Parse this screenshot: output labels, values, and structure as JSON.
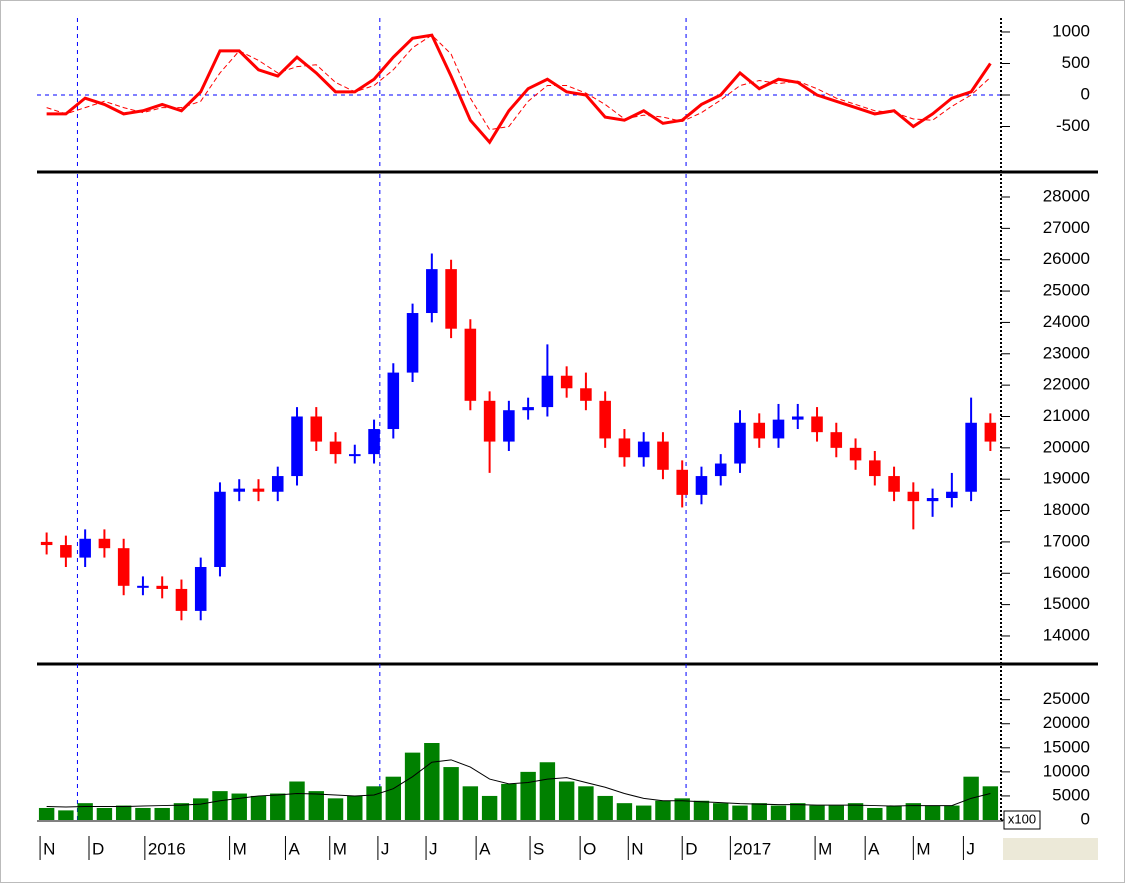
{
  "chart_data": [
    {
      "type": "line",
      "xlim": [
        0,
        50
      ],
      "ylim": [
        -1190,
        1190
      ],
      "yticks": [
        -500,
        0,
        500,
        1000
      ],
      "vlines": [
        2.1,
        17.8,
        33.7
      ],
      "series": [
        {
          "name": "oscillator",
          "color": "#ff0000",
          "values": [
            -300,
            -300,
            -50,
            -150,
            -300,
            -250,
            -150,
            -250,
            50,
            700,
            700,
            400,
            300,
            600,
            350,
            50,
            50,
            250,
            600,
            900,
            950,
            300,
            -400,
            -750,
            -250,
            100,
            250,
            50,
            0,
            -350,
            -400,
            -250,
            -450,
            -400,
            -150,
            0,
            350,
            100,
            250,
            200,
            0,
            -100,
            -200,
            -300,
            -250,
            -500,
            -300,
            -50,
            50,
            500
          ]
        },
        {
          "name": "signal",
          "color": "#ff0000",
          "values": [
            -200,
            -300,
            -200,
            -100,
            -200,
            -280,
            -200,
            -200,
            -100,
            350,
            700,
            550,
            350,
            450,
            480,
            200,
            50,
            150,
            400,
            750,
            950,
            650,
            -50,
            -550,
            -500,
            -100,
            150,
            150,
            30,
            -150,
            -380,
            -320,
            -350,
            -420,
            -280,
            -80,
            150,
            230,
            180,
            220,
            100,
            -50,
            -150,
            -250,
            -280,
            -380,
            -400,
            -180,
            0,
            280
          ]
        }
      ]
    },
    {
      "type": "candlestick",
      "xlim": [
        0,
        50
      ],
      "ylim": [
        13170,
        28670
      ],
      "yticks": [
        14000,
        15000,
        16000,
        17000,
        18000,
        19000,
        20000,
        21000,
        22000,
        23000,
        24000,
        25000,
        26000,
        27000,
        28000
      ],
      "vlines": [
        2.1,
        17.8,
        33.7
      ],
      "up_color": "#0000ff",
      "down_color": "#ff0000",
      "open": [
        17000,
        16900,
        16500,
        17100,
        16800,
        15600,
        15600,
        15500,
        14800,
        16200,
        18600,
        18700,
        18600,
        19100,
        21000,
        20200,
        19800,
        19800,
        20600,
        22400,
        24300,
        25700,
        23800,
        21500,
        20200,
        21200,
        21300,
        22300,
        21900,
        21500,
        20300,
        19700,
        20200,
        19300,
        18500,
        19100,
        19500,
        20800,
        20300,
        20900,
        21000,
        20500,
        20000,
        19600,
        19100,
        18600,
        18300,
        18400,
        18600,
        20800
      ],
      "high": [
        17300,
        17200,
        17400,
        17400,
        17100,
        15900,
        15900,
        15800,
        16500,
        18900,
        19000,
        19000,
        19400,
        21300,
        21300,
        20500,
        20100,
        20900,
        22700,
        24600,
        26200,
        26000,
        24100,
        21800,
        21500,
        21600,
        23300,
        22600,
        22400,
        21800,
        20600,
        20500,
        20500,
        19600,
        19400,
        19800,
        21200,
        21100,
        21400,
        21400,
        21300,
        20800,
        20300,
        19900,
        19400,
        18900,
        18700,
        19200,
        21600,
        21100
      ],
      "low": [
        16600,
        16200,
        16200,
        16500,
        15300,
        15300,
        15200,
        14500,
        14500,
        15900,
        18300,
        18300,
        18300,
        18800,
        19900,
        19500,
        19500,
        19500,
        20300,
        22100,
        24000,
        23500,
        21200,
        19200,
        19900,
        20900,
        21000,
        21600,
        21200,
        20000,
        19400,
        19400,
        19000,
        18100,
        18200,
        18800,
        19200,
        20000,
        20000,
        20600,
        20200,
        19700,
        19300,
        18800,
        18300,
        17400,
        17800,
        18100,
        18300,
        19900
      ],
      "close": [
        16900,
        16500,
        17100,
        16800,
        15600,
        15600,
        15500,
        14800,
        16200,
        18600,
        18700,
        18600,
        19100,
        21000,
        20200,
        19800,
        19800,
        20600,
        22400,
        24300,
        25700,
        23800,
        21500,
        20200,
        21200,
        21300,
        22300,
        21900,
        21500,
        20300,
        19700,
        20200,
        19300,
        18500,
        19100,
        19500,
        20800,
        20300,
        20900,
        21000,
        20500,
        20000,
        19600,
        19100,
        18600,
        18300,
        18400,
        18600,
        20800,
        20200
      ]
    },
    {
      "type": "bar",
      "xlim": [
        0,
        50
      ],
      "ylim": [
        0,
        32000
      ],
      "yticks": [
        0,
        5000,
        10000,
        15000,
        20000,
        25000
      ],
      "vlines": [
        2.1,
        17.8,
        33.7
      ],
      "unit_label": "x100",
      "color": "#008000",
      "ma_color": "#000000",
      "values": [
        2500,
        2000,
        3500,
        2500,
        3000,
        2500,
        2500,
        3500,
        4500,
        6000,
        5500,
        5000,
        5500,
        8000,
        6000,
        4500,
        5000,
        7000,
        9000,
        14000,
        16000,
        11000,
        7000,
        5000,
        7500,
        10000,
        12000,
        8000,
        7000,
        5000,
        3500,
        3000,
        4000,
        4500,
        4000,
        3500,
        3000,
        3500,
        3000,
        3500,
        3000,
        3000,
        3500,
        2500,
        3000,
        3500,
        3000,
        3000,
        9000,
        7000
      ],
      "ma": [
        2800,
        2700,
        2800,
        2800,
        2800,
        2900,
        3000,
        3100,
        3300,
        4000,
        4500,
        5000,
        5200,
        5500,
        5400,
        5200,
        5000,
        5200,
        6500,
        9000,
        12000,
        12500,
        11000,
        8500,
        7500,
        7800,
        8500,
        8800,
        7800,
        6800,
        5500,
        4500,
        4000,
        4000,
        3800,
        3600,
        3400,
        3300,
        3200,
        3200,
        3100,
        3100,
        3100,
        3000,
        2900,
        3000,
        3000,
        3000,
        4500,
        5500
      ],
      "xticks": [
        {
          "value": 0.16,
          "label": "N"
        },
        {
          "value": 2.7,
          "label": "D"
        },
        {
          "value": 5.6,
          "label": "2016"
        },
        {
          "value": 10.0,
          "label": "M"
        },
        {
          "value": 12.9,
          "label": "A"
        },
        {
          "value": 15.2,
          "label": "M"
        },
        {
          "value": 17.7,
          "label": "J"
        },
        {
          "value": 20.2,
          "label": "J"
        },
        {
          "value": 22.8,
          "label": "A"
        },
        {
          "value": 25.6,
          "label": "S"
        },
        {
          "value": 28.2,
          "label": "O"
        },
        {
          "value": 30.7,
          "label": "N"
        },
        {
          "value": 33.5,
          "label": "D"
        },
        {
          "value": 36.0,
          "label": "2017"
        },
        {
          "value": 40.4,
          "label": "M"
        },
        {
          "value": 43.0,
          "label": "A"
        },
        {
          "value": 45.5,
          "label": "M"
        },
        {
          "value": 48.1,
          "label": "J"
        }
      ]
    }
  ]
}
